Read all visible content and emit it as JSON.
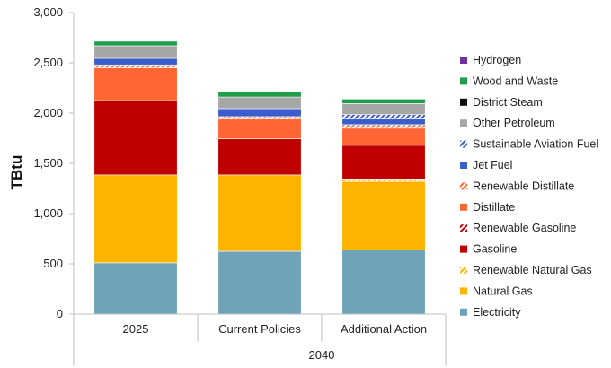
{
  "chart_data": {
    "type": "bar",
    "stacked": true,
    "ylabel": "TBtu",
    "ylim": [
      0,
      3000
    ],
    "yticks": [
      "0",
      "500",
      "1,000",
      "1,500",
      "2,000",
      "2,500",
      "3,000"
    ],
    "ytick_values": [
      0,
      500,
      1000,
      1500,
      2000,
      2500,
      3000
    ],
    "categories": [
      "2025",
      "Current Policies",
      "Additional Action"
    ],
    "group_label": "2040",
    "grid": false,
    "legend_position": "right",
    "series": [
      {
        "name": "Electricity",
        "color": "#6fa3b8",
        "pattern": "solid",
        "values": [
          510,
          625,
          640
        ]
      },
      {
        "name": "Natural Gas",
        "color": "#fcb400",
        "pattern": "solid",
        "values": [
          875,
          760,
          680
        ]
      },
      {
        "name": "Renewable Natural Gas",
        "color": "#fcb400",
        "pattern": "hatch",
        "values": [
          0,
          0,
          25
        ]
      },
      {
        "name": "Gasoline",
        "color": "#c00000",
        "pattern": "solid",
        "values": [
          740,
          360,
          335
        ]
      },
      {
        "name": "Renewable Gasoline",
        "color": "#c00000",
        "pattern": "hatch",
        "values": [
          0,
          0,
          0
        ]
      },
      {
        "name": "Distillate",
        "color": "#ff6633",
        "pattern": "solid",
        "values": [
          325,
          195,
          170
        ]
      },
      {
        "name": "Renewable Distillate",
        "color": "#ff6633",
        "pattern": "hatch",
        "values": [
          30,
          25,
          35
        ]
      },
      {
        "name": "Jet Fuel",
        "color": "#3a5ccc",
        "pattern": "solid",
        "values": [
          65,
          80,
          55
        ]
      },
      {
        "name": "Sustainable Aviation Fuel",
        "color": "#3a5ccc",
        "pattern": "hatch",
        "values": [
          0,
          0,
          45
        ]
      },
      {
        "name": "Other Petroleum",
        "color": "#a6a6a6",
        "pattern": "solid",
        "values": [
          125,
          115,
          110
        ]
      },
      {
        "name": "District Steam",
        "color": "#111111",
        "pattern": "solid",
        "values": [
          0,
          0,
          0
        ]
      },
      {
        "name": "Wood and Waste",
        "color": "#1e9e4a",
        "pattern": "solid",
        "values": [
          45,
          50,
          45
        ]
      },
      {
        "name": "Hydrogen",
        "color": "#7030a0",
        "pattern": "solid",
        "values": [
          0,
          0,
          0
        ]
      }
    ]
  }
}
